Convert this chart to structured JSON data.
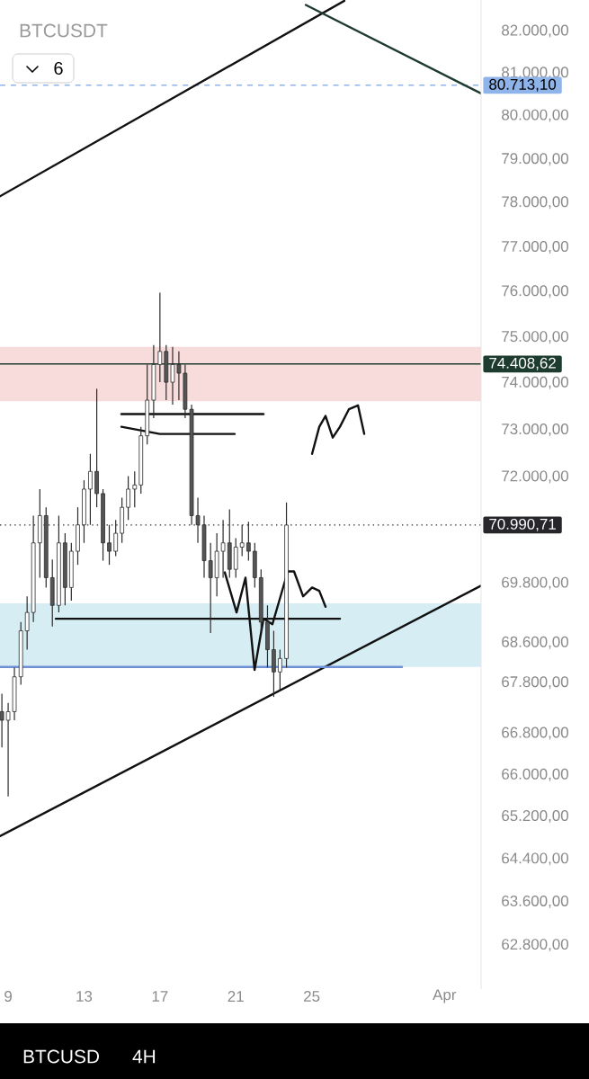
{
  "chart_data": {
    "type": "candlestick",
    "title": "BTCUSDT",
    "log": true,
    "xlim": [
      8.57,
      33.93
    ],
    "ylim": [
      62000,
      82750
    ],
    "xticks": [
      9,
      13,
      17,
      21,
      25,
      {
        "value": 32,
        "label": "Apr"
      }
    ],
    "yticks": [
      {
        "value": 82000,
        "label": "82.000,00"
      },
      {
        "value": 81000,
        "label": "81.000,00"
      },
      {
        "value": 80000,
        "label": "80.000,00"
      },
      {
        "value": 79000,
        "label": "79.000,00"
      },
      {
        "value": 78000,
        "label": "78.000,00"
      },
      {
        "value": 77000,
        "label": "77.000,00"
      },
      {
        "value": 76000,
        "label": "76.000,00"
      },
      {
        "value": 75000,
        "label": "75.000,00"
      },
      {
        "value": 74000,
        "label": "74.000,00"
      },
      {
        "value": 73000,
        "label": "73.000,00"
      },
      {
        "value": 72000,
        "label": "72.000,00"
      },
      {
        "value": 69800,
        "label": "69.800,00"
      },
      {
        "value": 68600,
        "label": "68.600,00"
      },
      {
        "value": 67800,
        "label": "67.800,00"
      },
      {
        "value": 66800,
        "label": "66.800,00"
      },
      {
        "value": 66000,
        "label": "66.000,00"
      },
      {
        "value": 65200,
        "label": "65.200,00"
      },
      {
        "value": 64400,
        "label": "64.400,00"
      },
      {
        "value": 63600,
        "label": "63.600,00"
      },
      {
        "value": 62800,
        "label": "62.800,00"
      }
    ],
    "x": [
      8.67,
      9,
      9.33,
      9.67,
      10,
      10.33,
      10.67,
      11,
      11.33,
      11.67,
      12,
      12.33,
      12.67,
      13,
      13.33,
      13.67,
      14,
      14.33,
      14.67,
      15,
      15.33,
      15.67,
      16,
      16.33,
      16.67,
      17,
      17.33,
      17.67,
      18,
      18.33,
      18.67,
      19,
      19.33,
      19.67,
      20,
      20.33,
      20.67,
      21,
      21.33,
      21.67,
      22,
      22.33,
      22.67,
      23,
      23.33,
      23.67
    ],
    "ohlc": [
      [
        67230,
        67580,
        66530,
        67060
      ],
      [
        67060,
        67400,
        65580,
        67230
      ],
      [
        67230,
        68100,
        67060,
        67920
      ],
      [
        67920,
        69010,
        67760,
        68830
      ],
      [
        68830,
        69530,
        68460,
        69210
      ],
      [
        69210,
        71190,
        69010,
        70630
      ],
      [
        70630,
        71740,
        69910,
        71190
      ],
      [
        71190,
        71370,
        69710,
        69910
      ],
      [
        69910,
        70280,
        68920,
        69350
      ],
      [
        69350,
        71190,
        69210,
        70630
      ],
      [
        70630,
        70820,
        69350,
        69710
      ],
      [
        69710,
        70630,
        69440,
        70450
      ],
      [
        70450,
        71370,
        70170,
        71000
      ],
      [
        71000,
        71930,
        70630,
        71740
      ],
      [
        71740,
        72490,
        71000,
        72110
      ],
      [
        72110,
        73880,
        71370,
        71650
      ],
      [
        71650,
        71740,
        70260,
        70630
      ],
      [
        70630,
        71000,
        70170,
        70450
      ],
      [
        70450,
        71100,
        70350,
        70820
      ],
      [
        70820,
        71560,
        70630,
        71370
      ],
      [
        71370,
        72020,
        71100,
        71740
      ],
      [
        71740,
        72110,
        71370,
        71830
      ],
      [
        71830,
        73060,
        71650,
        72870
      ],
      [
        72870,
        74400,
        72680,
        73630
      ],
      [
        73630,
        74830,
        73250,
        74400
      ],
      [
        74400,
        75980,
        74020,
        74690
      ],
      [
        74690,
        74830,
        73630,
        74020
      ],
      [
        74020,
        74790,
        73540,
        74400
      ],
      [
        74400,
        74690,
        73630,
        74210
      ],
      [
        74210,
        74400,
        73250,
        73440
      ],
      [
        73440,
        73540,
        71000,
        71190
      ],
      [
        71190,
        71560,
        70630,
        71000
      ],
      [
        71000,
        71190,
        69910,
        70260
      ],
      [
        70260,
        70630,
        68790,
        69910
      ],
      [
        69910,
        70820,
        69530,
        70450
      ],
      [
        70450,
        71100,
        69910,
        70630
      ],
      [
        70630,
        71320,
        69910,
        70080
      ],
      [
        70080,
        70720,
        69910,
        70540
      ],
      [
        70540,
        71000,
        70350,
        70630
      ],
      [
        70630,
        71060,
        70260,
        70450
      ],
      [
        70450,
        70630,
        69710,
        69910
      ],
      [
        69910,
        70080,
        68830,
        69010
      ],
      [
        69010,
        69350,
        68100,
        68460
      ],
      [
        68460,
        68830,
        67520,
        68010
      ],
      [
        68010,
        68460,
        67660,
        68280
      ],
      [
        68280,
        71460,
        68100,
        70990
      ]
    ],
    "series": [
      {
        "type": "line",
        "color": "#111111",
        "x": [
          8.57,
          26.72
        ],
        "values": [
          78150,
          82730
        ]
      },
      {
        "type": "line",
        "color": "#111111",
        "x": [
          8.57,
          33.93
        ],
        "values": [
          64830,
          69750
        ]
      },
      {
        "type": "line",
        "color": "#1e3b2f",
        "x": [
          24.69,
          33.93
        ],
        "values": [
          82630,
          80520
        ]
      },
      {
        "type": "line",
        "color": "#111111",
        "x": [
          14.97,
          22.46
        ],
        "values": [
          73330,
          73330
        ]
      },
      {
        "type": "line",
        "color": "#111111",
        "x": [
          14.97,
          17.0,
          20.94
        ],
        "values": [
          73060,
          72910,
          72910
        ]
      },
      {
        "type": "line",
        "color": "#111111",
        "x": [
          11.51,
          26.49
        ],
        "values": [
          69080,
          69080
        ]
      },
      {
        "type": "line",
        "color": "#6f8fd9",
        "x": [
          8.57,
          29.76
        ],
        "values": [
          68110,
          68110
        ]
      },
      {
        "type": "line",
        "color": "#111111",
        "x": [
          25.02,
          25.4,
          25.73,
          26.11,
          26.49,
          26.96,
          27.44,
          27.77
        ],
        "values": [
          72490,
          73060,
          73290,
          72830,
          73060,
          73440,
          73520,
          72910
        ]
      },
      {
        "type": "line",
        "color": "#111111",
        "x": [
          20.42,
          21.04,
          21.51,
          21.99,
          22.46,
          22.93,
          23.74,
          24.07,
          24.55,
          25.02,
          25.4,
          25.73
        ],
        "values": [
          70020,
          69210,
          69910,
          68050,
          69080,
          68970,
          70040,
          70040,
          69530,
          69710,
          69640,
          69320
        ]
      }
    ],
    "bands": [
      {
        "axis": "y",
        "from": 73610,
        "to": 74790,
        "color": "#f8dcdc"
      },
      {
        "axis": "y",
        "from": 68110,
        "to": 69390,
        "color": "#d6eef3"
      }
    ],
    "ref_lines": [
      {
        "axis": "y",
        "value": 80713.1,
        "label": "80.713,10",
        "color": "#8fb4ea",
        "line_style": "dashed"
      },
      {
        "axis": "y",
        "value": 74408.62,
        "label": "74.408,62",
        "color": "#1e3b2f",
        "line_style": "solid"
      },
      {
        "axis": "y",
        "value": 70990.71,
        "label": "70.990,71",
        "color": "#26262b",
        "line_style": "dotted"
      }
    ],
    "annotations": [
      "6",
      "BTCUSD",
      "4H"
    ]
  }
}
